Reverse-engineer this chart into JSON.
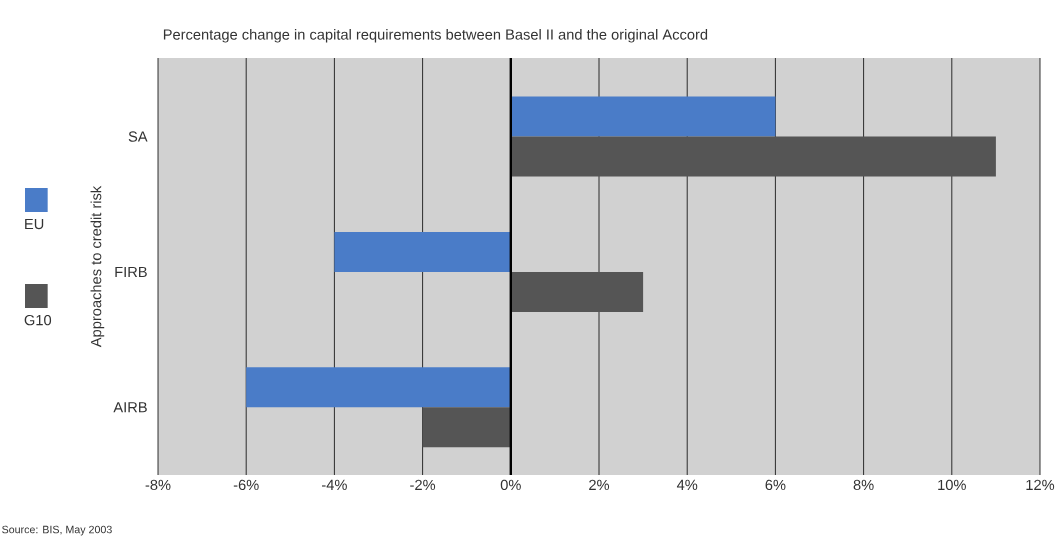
{
  "chart_data": {
    "type": "bar",
    "orientation": "horizontal",
    "title": "Percentage change in capital requirements between Basel II and the original Accord",
    "ylabel": "Approaches to credit risk",
    "categories": [
      "SA",
      "FIRB",
      "AIRB"
    ],
    "series": [
      {
        "name": "EU",
        "color": "#4a7cc8",
        "values": [
          6,
          -4,
          -6
        ]
      },
      {
        "name": "G10",
        "color": "#555555",
        "values": [
          11,
          3,
          -2
        ]
      }
    ],
    "xlim": [
      -8,
      12
    ],
    "xticks": [
      {
        "value": -8,
        "label": "-8%"
      },
      {
        "value": -6,
        "label": "-6%"
      },
      {
        "value": -4,
        "label": "-4%"
      },
      {
        "value": -2,
        "label": "-2%"
      },
      {
        "value": 0,
        "label": "0%"
      },
      {
        "value": 2,
        "label": "2%"
      },
      {
        "value": 4,
        "label": "4%"
      },
      {
        "value": 6,
        "label": "6%"
      },
      {
        "value": 8,
        "label": "8%"
      },
      {
        "value": 10,
        "label": "10%"
      },
      {
        "value": 12,
        "label": "12%"
      }
    ],
    "ref_lines": [
      {
        "axis": "x",
        "value": 0
      }
    ],
    "grid": "x",
    "legend": "left",
    "annotations": [
      "Source: BIS, May 2003"
    ]
  }
}
